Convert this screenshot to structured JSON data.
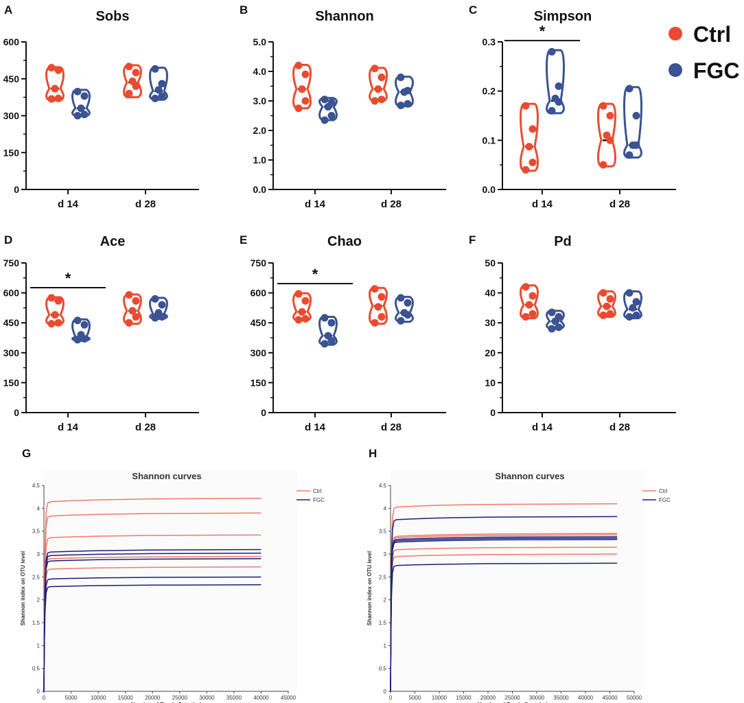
{
  "legend": {
    "title": "",
    "items": [
      {
        "label": "Ctrl",
        "color": "#ea4b30"
      },
      {
        "label": "FGC",
        "color": "#3b5392"
      }
    ]
  },
  "chart_data": [
    {
      "panel": "A",
      "type": "violin",
      "title": "Sobs",
      "categories": [
        "d 14",
        "d 28"
      ],
      "ylim": [
        0,
        600
      ],
      "yticks": [
        "0",
        "150",
        "300",
        "450",
        "600"
      ],
      "series": [
        {
          "name": "Ctrl",
          "color": "#ea4b30",
          "groups": [
            {
              "points": [
                495,
                485,
                410,
                370,
                368
              ],
              "median": 410,
              "min": 362,
              "max": 497
            },
            {
              "points": [
                500,
                475,
                440,
                420,
                390
              ],
              "median": 435,
              "min": 375,
              "max": 505
            }
          ]
        },
        {
          "name": "FGC",
          "color": "#3b5392",
          "groups": [
            {
              "points": [
                398,
                380,
                330,
                305,
                300
              ],
              "median": 330,
              "min": 298,
              "max": 405
            },
            {
              "points": [
                490,
                430,
                405,
                380,
                370
              ],
              "median": 400,
              "min": 365,
              "max": 495
            }
          ]
        }
      ],
      "significance": []
    },
    {
      "panel": "B",
      "type": "violin",
      "title": "Shannon",
      "categories": [
        "d 14",
        "d 28"
      ],
      "ylim": [
        0,
        5
      ],
      "yticks": [
        "0.0",
        "1.0",
        "2.0",
        "3.0",
        "4.0",
        "5.0"
      ],
      "series": [
        {
          "name": "Ctrl",
          "color": "#ea4b30",
          "groups": [
            {
              "points": [
                4.2,
                3.9,
                3.4,
                3.0,
                2.75
              ],
              "median": 3.4,
              "min": 2.75,
              "max": 4.22
            },
            {
              "points": [
                4.1,
                3.8,
                3.4,
                3.05,
                3.0
              ],
              "median": 3.4,
              "min": 3.0,
              "max": 4.12
            }
          ]
        },
        {
          "name": "FGC",
          "color": "#3b5392",
          "groups": [
            {
              "points": [
                3.05,
                2.95,
                2.8,
                2.5,
                2.35
              ],
              "median": 2.8,
              "min": 2.35,
              "max": 3.1
            },
            {
              "points": [
                3.8,
                3.35,
                3.3,
                2.9,
                2.85
              ],
              "median": 3.3,
              "min": 2.82,
              "max": 3.82
            }
          ]
        }
      ],
      "significance": []
    },
    {
      "panel": "C",
      "type": "violin",
      "title": "Simpson",
      "categories": [
        "d 14",
        "d 28"
      ],
      "ylim": [
        0,
        0.3
      ],
      "yticks": [
        "0.0",
        "0.1",
        "0.2",
        "0.3"
      ],
      "series": [
        {
          "name": "Ctrl",
          "color": "#ea4b30",
          "groups": [
            {
              "points": [
                0.17,
                0.123,
                0.087,
                0.055,
                0.04
              ],
              "median": 0.087,
              "min": 0.038,
              "max": 0.174
            },
            {
              "points": [
                0.17,
                0.15,
                0.11,
                0.1,
                0.05
              ],
              "median": 0.1,
              "min": 0.047,
              "max": 0.174
            }
          ]
        },
        {
          "name": "FGC",
          "color": "#3b5392",
          "groups": [
            {
              "points": [
                0.28,
                0.21,
                0.185,
                0.178,
                0.16
              ],
              "median": 0.18,
              "min": 0.155,
              "max": 0.283
            },
            {
              "points": [
                0.205,
                0.15,
                0.09,
                0.09,
                0.07
              ],
              "median": 0.09,
              "min": 0.065,
              "max": 0.208
            }
          ]
        }
      ],
      "significance": [
        {
          "category": "d 14",
          "label": "*"
        }
      ]
    },
    {
      "panel": "D",
      "type": "violin",
      "title": "Ace",
      "categories": [
        "d 14",
        "d 28"
      ],
      "ylim": [
        0,
        750
      ],
      "yticks": [
        "0",
        "150",
        "300",
        "450",
        "600",
        "750"
      ],
      "series": [
        {
          "name": "Ctrl",
          "color": "#ea4b30",
          "groups": [
            {
              "points": [
                575,
                560,
                490,
                450,
                445
              ],
              "median": 490,
              "min": 442,
              "max": 578
            },
            {
              "points": [
                590,
                560,
                510,
                480,
                450
              ],
              "median": 510,
              "min": 445,
              "max": 592
            }
          ]
        },
        {
          "name": "FGC",
          "color": "#3b5392",
          "groups": [
            {
              "points": [
                462,
                440,
                390,
                370,
                365
              ],
              "median": 380,
              "min": 360,
              "max": 467
            },
            {
              "points": [
                570,
                540,
                500,
                480,
                475
              ],
              "median": 495,
              "min": 470,
              "max": 575
            }
          ]
        }
      ],
      "significance": [
        {
          "category": "d 14",
          "label": "*"
        }
      ]
    },
    {
      "panel": "E",
      "type": "violin",
      "title": "Chao",
      "categories": [
        "d 14",
        "d 28"
      ],
      "ylim": [
        0,
        750
      ],
      "yticks": [
        "0",
        "150",
        "300",
        "450",
        "600",
        "750"
      ],
      "series": [
        {
          "name": "Ctrl",
          "color": "#ea4b30",
          "groups": [
            {
              "points": [
                595,
                560,
                505,
                470,
                465
              ],
              "median": 505,
              "min": 462,
              "max": 598
            },
            {
              "points": [
                620,
                580,
                530,
                480,
                450
              ],
              "median": 535,
              "min": 445,
              "max": 625
            }
          ]
        },
        {
          "name": "FGC",
          "color": "#3b5392",
          "groups": [
            {
              "points": [
                475,
                450,
                385,
                360,
                345
              ],
              "median": 385,
              "min": 340,
              "max": 480
            },
            {
              "points": [
                575,
                550,
                500,
                490,
                460
              ],
              "median": 500,
              "min": 455,
              "max": 580
            }
          ]
        }
      ],
      "significance": [
        {
          "category": "d 14",
          "label": "*"
        }
      ]
    },
    {
      "panel": "F",
      "type": "violin",
      "title": "Pd",
      "categories": [
        "d 14",
        "d 28"
      ],
      "ylim": [
        0,
        50
      ],
      "yticks": [
        "0",
        "10",
        "20",
        "30",
        "40",
        "50"
      ],
      "series": [
        {
          "name": "Ctrl",
          "color": "#ea4b30",
          "groups": [
            {
              "points": [
                42,
                39,
                36,
                33,
                32
              ],
              "median": 36,
              "min": 31.5,
              "max": 42.5
            },
            {
              "points": [
                40,
                38,
                35.5,
                33,
                32.5
              ],
              "median": 35.5,
              "min": 32,
              "max": 40.5
            }
          ]
        },
        {
          "name": "FGC",
          "color": "#3b5392",
          "groups": [
            {
              "points": [
                33.5,
                32,
                30.5,
                28.5,
                28
              ],
              "median": 30.5,
              "min": 28,
              "max": 34
            },
            {
              "points": [
                40,
                37,
                35,
                32.5,
                32
              ],
              "median": 34.5,
              "min": 31.5,
              "max": 40.5
            }
          ]
        }
      ],
      "significance": []
    },
    {
      "panel": "G",
      "type": "line",
      "title": "Shannon curves",
      "xlabel": "Number of Reads Sampled",
      "ylabel": "Shannon index on OTU level",
      "xlim": [
        0,
        45000
      ],
      "ylim": [
        0,
        4.5
      ],
      "xticks": [
        "0",
        "5000",
        "10000",
        "15000",
        "20000",
        "25000",
        "30000",
        "35000",
        "40000",
        "45000"
      ],
      "yticks": [
        "0",
        "0.5",
        "1",
        "1.5",
        "2",
        "2.5",
        "3",
        "3.5",
        "4",
        "4.5"
      ],
      "x_end": 40000,
      "legend": [
        {
          "label": "Ctrl",
          "color": "#f07a68"
        },
        {
          "label": "FGC",
          "color": "#1a1f7a"
        }
      ],
      "series": [
        {
          "name": "Ctrl",
          "color": "#f07a68",
          "plateaus": [
            4.22,
            3.9,
            3.42,
            2.95,
            2.72
          ]
        },
        {
          "name": "FGC",
          "color": "#1a1f7a",
          "plateaus": [
            3.1,
            3.02,
            2.9,
            2.5,
            2.33
          ]
        }
      ]
    },
    {
      "panel": "H",
      "type": "line",
      "title": "Shannon curves",
      "xlabel": "Number of Reads Sampled",
      "ylabel": "Shannon index on OTU level",
      "xlim": [
        0,
        50000
      ],
      "ylim": [
        0,
        4.5
      ],
      "xticks": [
        "0",
        "5000",
        "10000",
        "15000",
        "20000",
        "25000",
        "30000",
        "35000",
        "40000",
        "45000",
        "50000"
      ],
      "yticks": [
        "0",
        "0.5",
        "1",
        "1.5",
        "2",
        "2.5",
        "3",
        "3.5",
        "4",
        "4.5"
      ],
      "x_end": 46500,
      "legend": [
        {
          "label": "Ctrl",
          "color": "#f07a68"
        },
        {
          "label": "FGC",
          "color": "#1a1f7a"
        }
      ],
      "series": [
        {
          "name": "Ctrl",
          "color": "#f07a68",
          "plateaus": [
            4.1,
            3.45,
            3.42,
            3.15,
            3.0
          ]
        },
        {
          "name": "FGC",
          "color": "#1a1f7a",
          "plateaus": [
            3.82,
            3.38,
            3.35,
            3.32,
            2.8
          ]
        }
      ]
    }
  ]
}
